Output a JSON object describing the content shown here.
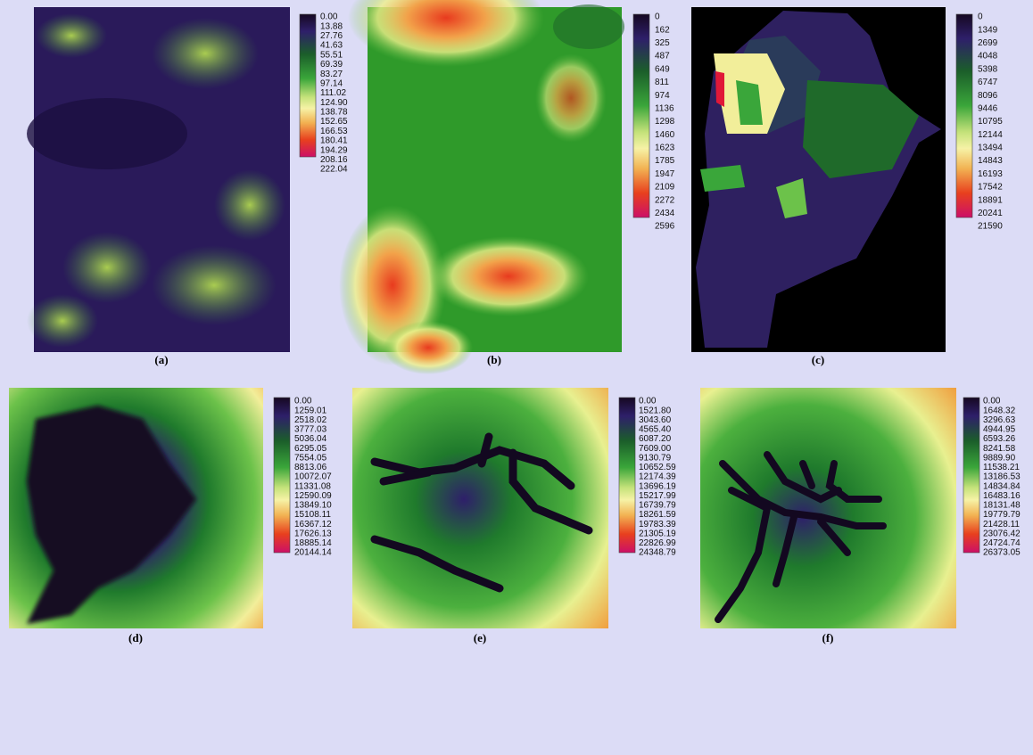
{
  "panels": [
    {
      "caption": "(a)",
      "legend": [
        "0.00",
        "13.88",
        "27.76",
        "41.63",
        "55.51",
        "69.39",
        "83.27",
        "97.14",
        "111.02",
        "124.90",
        "138.78",
        "152.65",
        "166.53",
        "180.41",
        "194.29",
        "208.16",
        "222.04"
      ]
    },
    {
      "caption": "(b)",
      "legend": [
        "0",
        "162",
        "325",
        "487",
        "649",
        "811",
        "974",
        "1136",
        "1298",
        "1460",
        "1623",
        "1785",
        "1947",
        "2109",
        "2272",
        "2434",
        "2596"
      ]
    },
    {
      "caption": "(c)",
      "legend": [
        "0",
        "1349",
        "2699",
        "4048",
        "5398",
        "6747",
        "8096",
        "9446",
        "10795",
        "12144",
        "13494",
        "14843",
        "16193",
        "17542",
        "18891",
        "20241",
        "21590"
      ]
    },
    {
      "caption": "(d)",
      "legend": [
        "0.00",
        "1259.01",
        "2518.02",
        "3777.03",
        "5036.04",
        "6295.05",
        "7554.05",
        "8813.06",
        "10072.07",
        "11331.08",
        "12590.09",
        "13849.10",
        "15108.11",
        "16367.12",
        "17626.13",
        "18885.14",
        "20144.14"
      ]
    },
    {
      "caption": "(e)",
      "legend": [
        "0.00",
        "1521.80",
        "3043.60",
        "4565.40",
        "6087.20",
        "7609.00",
        "9130.79",
        "10652.59",
        "12174.39",
        "13696.19",
        "15217.99",
        "16739.79",
        "18261.59",
        "19783.39",
        "21305.19",
        "22826.99",
        "24348.79"
      ]
    },
    {
      "caption": "(f)",
      "legend": [
        "0.00",
        "1648.32",
        "3296.63",
        "4944.95",
        "6593.26",
        "8241.58",
        "9889.90",
        "11538.21",
        "13186.53",
        "14834.84",
        "16483.16",
        "18131.48",
        "19779.79",
        "21428.11",
        "23076.42",
        "24724.74",
        "26373.05"
      ]
    }
  ]
}
